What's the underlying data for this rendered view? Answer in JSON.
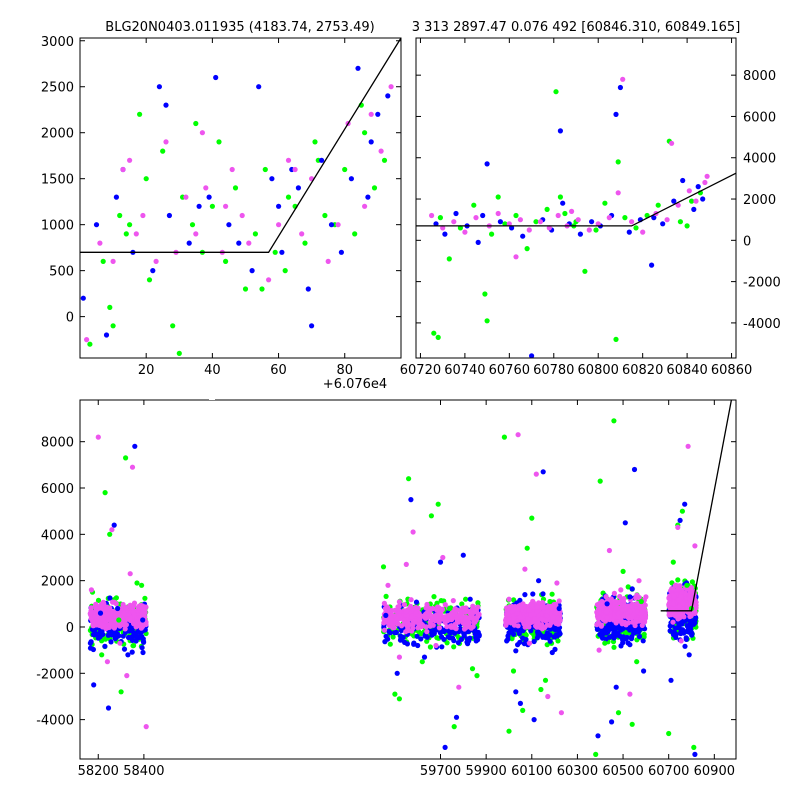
{
  "colors": {
    "green": "#00ff00",
    "blue": "#0000ff",
    "magenta": "#ee55ee",
    "model": "#000000"
  },
  "chart_data": [
    {
      "id": "zoom",
      "type": "scatter",
      "title": "BLG20N0403.011935 (4183.74, 2753.49)",
      "x_offset_label": "+6.076e4",
      "xlim": [
        0,
        97
      ],
      "ylim": [
        -450,
        3030
      ],
      "xticks": [
        20,
        40,
        60,
        80
      ],
      "yticks": [
        0,
        500,
        1000,
        1500,
        2000,
        2500,
        3000
      ],
      "yaxis_side": "left",
      "model_line": {
        "x": [
          0,
          57,
          97
        ],
        "y": [
          700,
          700,
          3030
        ]
      },
      "series": [
        {
          "name": "green",
          "color": "#00ff00",
          "x": [
            3,
            7,
            9,
            12,
            14,
            18,
            21,
            25,
            28,
            31,
            34,
            37,
            40,
            44,
            47,
            50,
            53,
            56,
            59,
            62,
            65,
            68,
            71,
            74,
            77,
            80,
            83,
            86,
            89,
            92,
            10,
            20,
            30,
            42,
            55,
            63,
            72,
            85,
            15,
            35
          ],
          "y": [
            -300,
            600,
            100,
            1100,
            900,
            2200,
            400,
            1800,
            -100,
            1300,
            1000,
            700,
            1200,
            600,
            1400,
            300,
            900,
            1600,
            700,
            500,
            1200,
            800,
            1900,
            1100,
            1000,
            1600,
            900,
            2000,
            1400,
            1700,
            -100,
            1500,
            -400,
            1900,
            300,
            1300,
            1700,
            2300,
            1000,
            2100
          ]
        },
        {
          "name": "blue",
          "color": "#0000ff",
          "x": [
            1,
            5,
            8,
            11,
            16,
            22,
            24,
            27,
            33,
            36,
            39,
            41,
            45,
            48,
            52,
            54,
            58,
            61,
            64,
            66,
            69,
            73,
            76,
            79,
            82,
            84,
            87,
            90,
            93,
            26,
            60,
            70,
            88,
            13
          ],
          "y": [
            200,
            1000,
            -200,
            1300,
            700,
            500,
            2500,
            1100,
            800,
            1200,
            1300,
            2600,
            1000,
            800,
            500,
            2500,
            1500,
            700,
            1600,
            1400,
            300,
            1700,
            1000,
            700,
            1500,
            2700,
            1300,
            2200,
            2400,
            2300,
            1200,
            -100,
            1900,
            1600
          ]
        },
        {
          "name": "magenta",
          "color": "#ee55ee",
          "x": [
            2,
            6,
            10,
            13,
            17,
            19,
            23,
            26,
            29,
            32,
            35,
            38,
            43,
            46,
            49,
            51,
            57,
            60,
            63,
            67,
            70,
            75,
            78,
            81,
            86,
            91,
            15,
            37,
            44,
            65,
            88,
            94
          ],
          "y": [
            -250,
            800,
            600,
            1600,
            900,
            1100,
            600,
            1900,
            700,
            1300,
            900,
            1400,
            700,
            1600,
            1100,
            800,
            400,
            1000,
            1700,
            900,
            1500,
            600,
            1000,
            2100,
            1200,
            1800,
            1700,
            2000,
            1200,
            1600,
            2200,
            2500
          ]
        }
      ]
    },
    {
      "id": "season",
      "type": "scatter",
      "title": "3 313 2897.47 0.076 492 [60846.310, 60849.165]",
      "xlim": [
        60718,
        60862
      ],
      "ylim": [
        -5700,
        9800
      ],
      "xticks": [
        60720,
        60740,
        60760,
        60780,
        60800,
        60820,
        60840,
        60860
      ],
      "yticks": [
        -4000,
        -2000,
        0,
        2000,
        4000,
        6000,
        8000
      ],
      "yaxis_side": "right",
      "model_line": {
        "x": [
          60718,
          60815,
          60862
        ],
        "y": [
          700,
          700,
          3250
        ]
      },
      "series": [
        {
          "name": "green",
          "color": "#00ff00",
          "x": [
            60726,
            60729,
            60733,
            60738,
            60744,
            60749,
            60752,
            60758,
            60763,
            60768,
            60772,
            60777,
            60781,
            60785,
            60789,
            60794,
            60799,
            60803,
            60808,
            60812,
            60817,
            60822,
            60827,
            60832,
            60837,
            60842,
            60846,
            60728,
            60750,
            60783,
            60809,
            60840,
            60755,
            60790
          ],
          "y": [
            -4500,
            1100,
            -900,
            600,
            1700,
            -2600,
            300,
            800,
            1200,
            -400,
            900,
            1500,
            7200,
            1300,
            700,
            -1500,
            500,
            1800,
            -4800,
            1100,
            600,
            1200,
            1700,
            4800,
            900,
            1900,
            2300,
            -4700,
            -3900,
            2100,
            3800,
            700,
            2100,
            900
          ]
        },
        {
          "name": "blue",
          "color": "#0000ff",
          "x": [
            60727,
            60731,
            60736,
            60741,
            60746,
            60750,
            60756,
            60761,
            60766,
            60770,
            60775,
            60779,
            60783,
            60787,
            60792,
            60797,
            60801,
            60806,
            60810,
            60814,
            60819,
            60824,
            60829,
            60834,
            60838,
            60843,
            60847,
            60748,
            60784,
            60808,
            60825,
            60845
          ],
          "y": [
            800,
            300,
            1300,
            700,
            -100,
            3700,
            900,
            600,
            200,
            -5600,
            1000,
            500,
            5300,
            800,
            300,
            900,
            700,
            1200,
            7400,
            400,
            1000,
            -1200,
            800,
            1900,
            2900,
            1500,
            2000,
            1200,
            1800,
            6100,
            1100,
            2600
          ]
        },
        {
          "name": "magenta",
          "color": "#ee55ee",
          "x": [
            60725,
            60730,
            60735,
            60740,
            60745,
            60751,
            60755,
            60760,
            60765,
            60769,
            60774,
            60778,
            60782,
            60786,
            60791,
            60796,
            60800,
            60805,
            60811,
            60815,
            60820,
            60826,
            60831,
            60836,
            60841,
            60844,
            60848,
            60763,
            60788,
            60809,
            60833,
            60849
          ],
          "y": [
            1200,
            600,
            900,
            400,
            1100,
            700,
            1300,
            800,
            1000,
            500,
            900,
            600,
            1200,
            700,
            1000,
            500,
            800,
            1100,
            7800,
            900,
            400,
            1300,
            1000,
            1700,
            2400,
            1900,
            2800,
            -800,
            1400,
            2300,
            4700,
            3100
          ]
        }
      ]
    },
    {
      "id": "full",
      "type": "scatter",
      "xlim": [
        58120,
        60995
      ],
      "ylim": [
        -5700,
        9800
      ],
      "xticks": [
        58200,
        58400,
        59700,
        59900,
        60100,
        60300,
        60500,
        60700,
        60900
      ],
      "yticks": [
        -4000,
        -2000,
        0,
        2000,
        4000,
        6000,
        8000
      ],
      "yaxis_side": "left",
      "model_line": {
        "x": [
          60665,
          60800,
          60975
        ],
        "y": [
          700,
          700,
          9800
        ]
      },
      "series": [
        {
          "name": "green",
          "color": "#00ff00",
          "x": [
            58175,
            58215,
            58250,
            58290,
            58320,
            58355,
            58390,
            58230,
            58300,
            58370,
            59450,
            59500,
            59560,
            59620,
            59690,
            59760,
            59810,
            59860,
            59520,
            59660,
            59740,
            59840,
            59980,
            60020,
            60060,
            60100,
            60140,
            60180,
            60215,
            60000,
            60080,
            60160,
            60380,
            60420,
            60460,
            60500,
            60540,
            60580,
            60400,
            60480,
            60560,
            60700,
            60740,
            60780,
            60810,
            60720,
            60760,
            60800
          ],
          "y": [
            1500,
            -1200,
            4000,
            300,
            7300,
            -800,
            1800,
            5800,
            -2800,
            1900,
            2600,
            -2900,
            6400,
            -1500,
            5300,
            -4300,
            1200,
            -2100,
            -3100,
            4800,
            800,
            -1800,
            8200,
            -1900,
            -3600,
            4700,
            -2700,
            1100,
            -600,
            -4500,
            3400,
            -2300,
            -5500,
            -700,
            8900,
            2400,
            -4200,
            1100,
            6300,
            -3700,
            -1500,
            -4600,
            4400,
            1800,
            -5200,
            2800,
            5000,
            800
          ]
        },
        {
          "name": "blue",
          "color": "#0000ff",
          "x": [
            58180,
            58210,
            58245,
            58285,
            58330,
            58360,
            58395,
            58270,
            59460,
            59510,
            59570,
            59630,
            59700,
            59770,
            59830,
            59600,
            59720,
            59800,
            59990,
            60030,
            60070,
            60110,
            60150,
            60190,
            60220,
            60050,
            60130,
            60390,
            60430,
            60470,
            60510,
            60550,
            60590,
            60450,
            60530,
            60710,
            60750,
            60790,
            60815,
            60770
          ],
          "y": [
            -2500,
            600,
            -3500,
            800,
            -1200,
            7800,
            300,
            4400,
            500,
            -2000,
            5500,
            -1300,
            2800,
            -3900,
            1200,
            -800,
            -5200,
            3100,
            -600,
            -2800,
            1400,
            -4000,
            6700,
            -1100,
            800,
            -3300,
            2000,
            -4700,
            1000,
            -2600,
            4500,
            6800,
            -1900,
            -4100,
            1300,
            -2300,
            4600,
            -1200,
            -5500,
            5300
          ]
        },
        {
          "name": "magenta",
          "color": "#ee55ee",
          "x": [
            58170,
            58200,
            58225,
            58260,
            58295,
            58325,
            58350,
            58380,
            58410,
            58240,
            58340,
            59470,
            59520,
            59580,
            59640,
            59710,
            59780,
            59850,
            59550,
            59680,
            60000,
            60040,
            60090,
            60120,
            60170,
            60210,
            60230,
            60070,
            60395,
            60440,
            60490,
            60530,
            60570,
            60600,
            60430,
            60720,
            60755,
            60785,
            60815,
            60740,
            60800
          ],
          "y": [
            1600,
            8200,
            400,
            4200,
            -700,
            -2100,
            6900,
            900,
            -4300,
            -1500,
            2300,
            1800,
            -1300,
            4100,
            -200,
            3000,
            -2600,
            700,
            2700,
            -800,
            1200,
            8300,
            -700,
            6600,
            -3000,
            1900,
            -3700,
            2500,
            -1000,
            3300,
            1600,
            -2900,
            2000,
            1300,
            400,
            1000,
            -600,
            7800,
            3500,
            4300,
            1700
          ]
        }
      ],
      "dense_clusters": [
        {
          "x_range": [
            58165,
            58410
          ],
          "y_center": 300,
          "y_spread": 650
        },
        {
          "x_range": [
            59450,
            59870
          ],
          "y_center": 300,
          "y_spread": 650
        },
        {
          "x_range": [
            59985,
            60225
          ],
          "y_center": 400,
          "y_spread": 650
        },
        {
          "x_range": [
            60385,
            60600
          ],
          "y_center": 500,
          "y_spread": 700
        },
        {
          "x_range": [
            60700,
            60820
          ],
          "y_center": 900,
          "y_spread": 800
        }
      ]
    }
  ]
}
